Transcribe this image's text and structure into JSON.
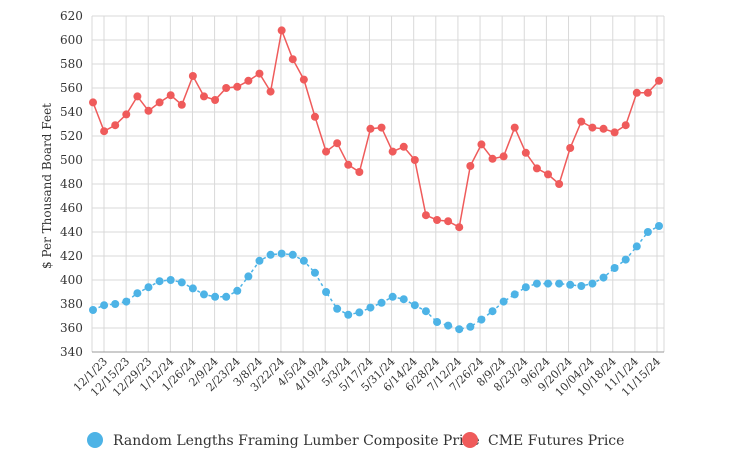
{
  "chart_data": {
    "type": "line",
    "title": "",
    "xlabel": "",
    "ylabel": "$ Per Thousand Board Feet",
    "ylim": [
      340,
      620
    ],
    "yticks": [
      340,
      360,
      380,
      400,
      420,
      440,
      460,
      480,
      500,
      520,
      540,
      560,
      580,
      600,
      620
    ],
    "grid": true,
    "legend_position": "bottom",
    "x_tick_labels": [
      "12/1/23",
      "12/15/23",
      "12/29/23",
      "1/12/24",
      "1/26/24",
      "2/9/24",
      "2/23/24",
      "3/8/24",
      "3/22/24",
      "4/5/24",
      "4/19/24",
      "5/3/24",
      "5/17/24",
      "5/31/24",
      "6/14/24",
      "6/28/24",
      "7/12/24",
      "7/26/24",
      "8/9/24",
      "8/23/24",
      "9/6/24",
      "9/20/24",
      "10/04/24",
      "10/18/24",
      "11/1/24",
      "11/15/24"
    ],
    "series": [
      {
        "name": "Random Lengths Framing Lumber Composite Price",
        "color": "#4db3e6",
        "dashed": true,
        "values": [
          375,
          379,
          380,
          382,
          389,
          394,
          399,
          400,
          398,
          393,
          388,
          386,
          386,
          391,
          403,
          416,
          421,
          422,
          421,
          416,
          406,
          390,
          376,
          371,
          373,
          377,
          381,
          386,
          384,
          379,
          374,
          365,
          362,
          359,
          361,
          367,
          374,
          382,
          388,
          394,
          397,
          397,
          397,
          396,
          395,
          397,
          402,
          410,
          417,
          428,
          440,
          445
        ]
      },
      {
        "name": "CME Futures Price",
        "color": "#ef5b5b",
        "dashed": false,
        "values": [
          548,
          524,
          529,
          538,
          553,
          541,
          548,
          554,
          546,
          570,
          553,
          550,
          560,
          561,
          566,
          572,
          557,
          608,
          584,
          567,
          536,
          507,
          514,
          496,
          490,
          526,
          527,
          507,
          511,
          500,
          454,
          450,
          449,
          444,
          495,
          513,
          501,
          503,
          527,
          506,
          493,
          488,
          480,
          510,
          532,
          527,
          526,
          523,
          529,
          556,
          556,
          566
        ]
      }
    ]
  }
}
